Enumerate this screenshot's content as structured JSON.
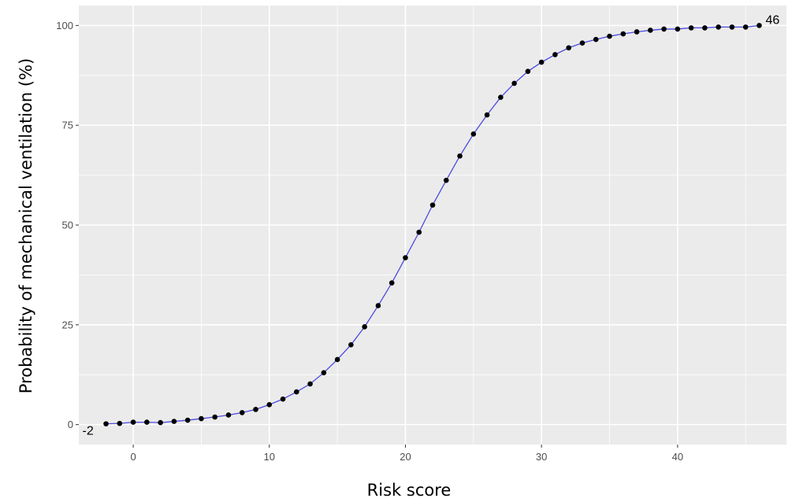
{
  "chart_data": {
    "type": "line",
    "title": "",
    "xlabel": "Risk score",
    "ylabel": "Probability of mechanical ventilation (%)",
    "xlim": [
      -4,
      48
    ],
    "ylim": [
      -5,
      105
    ],
    "x_ticks": [
      0,
      10,
      20,
      30,
      40
    ],
    "y_ticks": [
      0,
      25,
      50,
      75,
      100
    ],
    "grid": true,
    "legend": "none",
    "colors": {
      "panel": "#ebebeb",
      "grid": "#ffffff",
      "line": "#4a4ae0",
      "point": "#000000"
    },
    "series": [
      {
        "x": [
          -2,
          -1,
          0,
          1,
          2,
          3,
          4,
          5,
          6,
          7,
          8,
          9,
          10,
          11,
          12,
          13,
          14,
          15,
          16,
          17,
          18,
          19,
          20,
          21,
          22,
          23,
          24,
          25,
          26,
          27,
          28,
          29,
          30,
          31,
          32,
          33,
          34,
          35,
          36,
          37,
          38,
          39,
          40,
          41,
          42,
          43,
          44,
          45,
          46
        ],
        "y": [
          0.2,
          0.3,
          0.6,
          0.6,
          0.5,
          0.8,
          1.1,
          1.5,
          1.9,
          2.4,
          3.0,
          3.8,
          5.0,
          6.4,
          8.2,
          10.2,
          13.0,
          16.3,
          20.0,
          24.5,
          29.8,
          35.5,
          41.8,
          48.2,
          55.0,
          61.2,
          67.3,
          72.8,
          77.6,
          82.0,
          85.5,
          88.5,
          90.8,
          92.7,
          94.4,
          95.6,
          96.5,
          97.3,
          97.9,
          98.4,
          98.8,
          99.1,
          99.1,
          99.4,
          99.4,
          99.6,
          99.6,
          99.6,
          100.0
        ]
      }
    ],
    "annotations": [
      {
        "text": "-2",
        "x": -2,
        "y": 0.2
      },
      {
        "text": "46",
        "x": 46,
        "y": 100.0
      }
    ]
  }
}
